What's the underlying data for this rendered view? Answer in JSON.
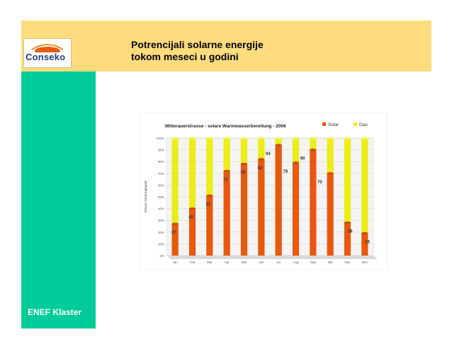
{
  "slide": {
    "title_line1": "Potrencijali solarne energije",
    "title_line2": "tokom meseci u godini",
    "footer_label": "ENEF Klaster"
  },
  "logo": {
    "text": "Conseko",
    "icon": "sun-logo-icon"
  },
  "colors": {
    "top_band": "#fedc7e",
    "left_band": "#00cc99",
    "solar": "#e8590c",
    "gas": "#ecec18"
  },
  "chart_data": {
    "type": "bar",
    "title": "Mitterauerstrasse - solare Warmwasserbereitung - 2006",
    "ylabel": "Solarer Deckungsgrad",
    "categories": [
      "Jan",
      "Feb",
      "Mar",
      "Apr",
      "Mai",
      "Jun",
      "Jul",
      "Aug",
      "Sep",
      "Okt",
      "Nov",
      "Dez"
    ],
    "series": [
      {
        "name": "Solar",
        "values": [
          27,
          40,
          51,
          72,
          78,
          82,
          94,
          79,
          90,
          70,
          28,
          19
        ]
      },
      {
        "name": "Gas",
        "values": [
          73,
          60,
          49,
          28,
          22,
          18,
          6,
          21,
          10,
          30,
          72,
          81
        ]
      }
    ],
    "stacked": true,
    "yticks": [
      "0%",
      "10%",
      "20%",
      "30%",
      "40%",
      "50%",
      "60%",
      "70%",
      "80%",
      "90%",
      "100%"
    ],
    "ylim": [
      0,
      100
    ],
    "legend_position": "top-right",
    "grid": true
  }
}
